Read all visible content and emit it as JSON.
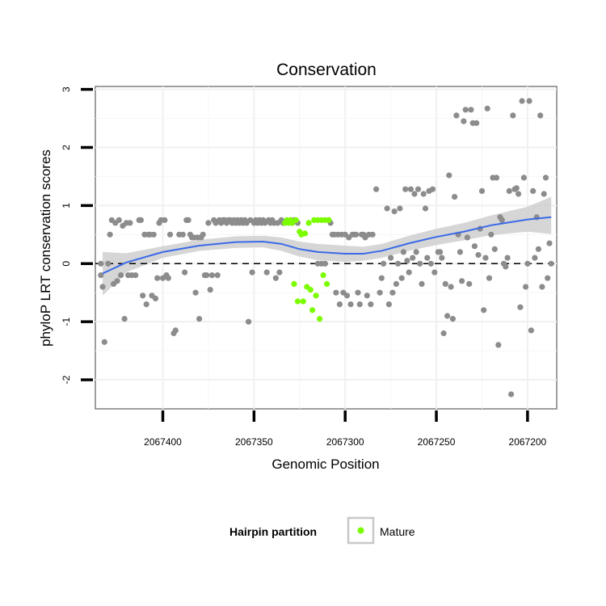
{
  "chart_data": {
    "type": "scatter",
    "title": "Conservation",
    "xlabel": "Genomic Position",
    "ylabel": "phyloP LRT conservation scores",
    "x_reversed": true,
    "xlim": [
      2067437,
      2067184
    ],
    "ylim": [
      -2.5,
      3.05
    ],
    "x_ticks": [
      2067400,
      2067350,
      2067300,
      2067250,
      2067200
    ],
    "y_ticks": [
      -2,
      -1,
      0,
      1,
      2,
      3
    ],
    "grid": true,
    "reference_line": {
      "y": 0,
      "style": "dashed"
    },
    "legend": {
      "title": "Hairpin partition",
      "entries": [
        {
          "label": "Mature",
          "color": "#7cfc00"
        }
      ],
      "placement": "bottom"
    },
    "colors": {
      "background_points": "#8c8c8c",
      "mature_points": "#7cfc00",
      "smooth_line": "#3a6ae8",
      "confidence_band": "#cfcfcf"
    },
    "series": [
      {
        "color": "#8c8c8c",
        "points": [
          [
            2067434,
            0.0
          ],
          [
            2067434,
            -0.2
          ],
          [
            2067433,
            -0.4
          ],
          [
            2067432,
            -1.35
          ],
          [
            2067430,
            0.0
          ],
          [
            2067429,
            0.5
          ],
          [
            2067428,
            0.75
          ],
          [
            2067427,
            -0.35
          ],
          [
            2067426,
            0.7
          ],
          [
            2067425,
            -0.3
          ],
          [
            2067424,
            0.75
          ],
          [
            2067423,
            -0.2
          ],
          [
            2067422,
            0.65
          ],
          [
            2067421,
            -0.95
          ],
          [
            2067420,
            0.7
          ],
          [
            2067419,
            -0.2
          ],
          [
            2067418,
            0.7
          ],
          [
            2067417,
            -0.2
          ],
          [
            2067415,
            -0.2
          ],
          [
            2067413,
            0.75
          ],
          [
            2067412,
            0.75
          ],
          [
            2067411,
            -0.55
          ],
          [
            2067410,
            0.5
          ],
          [
            2067409,
            -0.7
          ],
          [
            2067408,
            0.5
          ],
          [
            2067407,
            0.5
          ],
          [
            2067406,
            -0.55
          ],
          [
            2067405,
            0.5
          ],
          [
            2067404,
            -0.6
          ],
          [
            2067403,
            -0.25
          ],
          [
            2067402,
            0.7
          ],
          [
            2067401,
            0.75
          ],
          [
            2067400,
            -0.25
          ],
          [
            2067399,
            0.75
          ],
          [
            2067398,
            -0.2
          ],
          [
            2067397,
            -0.25
          ],
          [
            2067396,
            0.5
          ],
          [
            2067394,
            -1.2
          ],
          [
            2067393,
            -1.15
          ],
          [
            2067391,
            0.5
          ],
          [
            2067389,
            0.5
          ],
          [
            2067388,
            -0.15
          ],
          [
            2067387,
            0.75
          ],
          [
            2067386,
            0.75
          ],
          [
            2067385,
            0.5
          ],
          [
            2067384,
            0.45
          ],
          [
            2067383,
            0.45
          ],
          [
            2067382,
            -0.5
          ],
          [
            2067381,
            0.45
          ],
          [
            2067380,
            -0.95
          ],
          [
            2067379,
            0.45
          ],
          [
            2067378,
            0.5
          ],
          [
            2067377,
            -0.2
          ],
          [
            2067376,
            -0.2
          ],
          [
            2067375,
            0.7
          ],
          [
            2067374,
            -0.45
          ],
          [
            2067373,
            -0.2
          ],
          [
            2067372,
            0.75
          ],
          [
            2067371,
            0.7
          ],
          [
            2067370,
            -0.2
          ],
          [
            2067369,
            0.75
          ],
          [
            2067368,
            0.7
          ],
          [
            2067367,
            0.75
          ],
          [
            2067366,
            0.75
          ],
          [
            2067365,
            0.7
          ],
          [
            2067364,
            0.75
          ],
          [
            2067363,
            0.75
          ],
          [
            2067362,
            0.7
          ],
          [
            2067361,
            0.75
          ],
          [
            2067360,
            0.7
          ],
          [
            2067359,
            0.75
          ],
          [
            2067358,
            0.7
          ],
          [
            2067357,
            0.75
          ],
          [
            2067356,
            0.7
          ],
          [
            2067355,
            0.75
          ],
          [
            2067354,
            0.7
          ],
          [
            2067353,
            -1.0
          ],
          [
            2067352,
            0.75
          ],
          [
            2067351,
            -0.15
          ],
          [
            2067350,
            0.7
          ],
          [
            2067349,
            0.75
          ],
          [
            2067348,
            0.7
          ],
          [
            2067347,
            0.75
          ],
          [
            2067346,
            0.7
          ],
          [
            2067345,
            0.75
          ],
          [
            2067344,
            0.7
          ],
          [
            2067343,
            -0.15
          ],
          [
            2067342,
            0.75
          ],
          [
            2067341,
            0.7
          ],
          [
            2067340,
            0.75
          ],
          [
            2067339,
            0.7
          ],
          [
            2067338,
            -0.25
          ],
          [
            2067337,
            0.7
          ],
          [
            2067336,
            -0.15
          ],
          [
            2067335,
            0.75
          ],
          [
            2067334,
            0.7
          ],
          [
            2067329,
            0.7
          ],
          [
            2067328,
            0.75
          ],
          [
            2067326,
            0.7
          ],
          [
            2067315,
            0.0
          ],
          [
            2067313,
            0.0
          ],
          [
            2067311,
            0.0
          ],
          [
            2067309,
            0.75
          ],
          [
            2067308,
            0.7
          ],
          [
            2067307,
            0.5
          ],
          [
            2067306,
            0.5
          ],
          [
            2067305,
            -0.5
          ],
          [
            2067304,
            0.5
          ],
          [
            2067303,
            -0.7
          ],
          [
            2067302,
            0.5
          ],
          [
            2067301,
            -0.5
          ],
          [
            2067300,
            0.5
          ],
          [
            2067299,
            -0.55
          ],
          [
            2067298,
            0.45
          ],
          [
            2067297,
            -0.7
          ],
          [
            2067296,
            0.5
          ],
          [
            2067295,
            0.5
          ],
          [
            2067294,
            0.5
          ],
          [
            2067293,
            -0.5
          ],
          [
            2067292,
            -0.7
          ],
          [
            2067291,
            0.5
          ],
          [
            2067290,
            0.5
          ],
          [
            2067289,
            0.45
          ],
          [
            2067288,
            -0.55
          ],
          [
            2067287,
            0.5
          ],
          [
            2067286,
            -0.7
          ],
          [
            2067285,
            0.5
          ],
          [
            2067283,
            1.28
          ],
          [
            2067281,
            -0.5
          ],
          [
            2067280,
            -0.25
          ],
          [
            2067279,
            0.0
          ],
          [
            2067277,
            0.95
          ],
          [
            2067276,
            -0.7
          ],
          [
            2067275,
            0.1
          ],
          [
            2067274,
            -0.5
          ],
          [
            2067273,
            0.9
          ],
          [
            2067272,
            -0.35
          ],
          [
            2067271,
            0.0
          ],
          [
            2067270,
            0.95
          ],
          [
            2067269,
            -0.25
          ],
          [
            2067268,
            0.2
          ],
          [
            2067267,
            1.28
          ],
          [
            2067266,
            0.05
          ],
          [
            2067265,
            -0.15
          ],
          [
            2067264,
            1.28
          ],
          [
            2067263,
            0.1
          ],
          [
            2067262,
            1.2
          ],
          [
            2067261,
            0.2
          ],
          [
            2067260,
            1.28
          ],
          [
            2067259,
            0.0
          ],
          [
            2067258,
            -0.35
          ],
          [
            2067257,
            1.2
          ],
          [
            2067256,
            0.95
          ],
          [
            2067255,
            0.1
          ],
          [
            2067254,
            1.25
          ],
          [
            2067253,
            0.0
          ],
          [
            2067252,
            1.28
          ],
          [
            2067251,
            -0.15
          ],
          [
            2067249,
            0.2
          ],
          [
            2067248,
            0.2
          ],
          [
            2067247,
            0.1
          ],
          [
            2067246,
            -1.2
          ],
          [
            2067245,
            -0.35
          ],
          [
            2067244,
            -0.9
          ],
          [
            2067243,
            1.52
          ],
          [
            2067242,
            -0.4
          ],
          [
            2067241,
            -0.95
          ],
          [
            2067240,
            1.15
          ],
          [
            2067239,
            2.55
          ],
          [
            2067238,
            0.5
          ],
          [
            2067237,
            0.2
          ],
          [
            2067236,
            -0.3
          ],
          [
            2067235,
            2.45
          ],
          [
            2067234,
            2.65
          ],
          [
            2067233,
            0.45
          ],
          [
            2067232,
            -0.35
          ],
          [
            2067231,
            2.65
          ],
          [
            2067230,
            2.42
          ],
          [
            2067229,
            0.3
          ],
          [
            2067228,
            2.42
          ],
          [
            2067227,
            0.15
          ],
          [
            2067226,
            0.6
          ],
          [
            2067225,
            1.25
          ],
          [
            2067224,
            -0.8
          ],
          [
            2067223,
            0.1
          ],
          [
            2067222,
            2.67
          ],
          [
            2067221,
            -0.25
          ],
          [
            2067220,
            0.5
          ],
          [
            2067219,
            1.48
          ],
          [
            2067218,
            0.25
          ],
          [
            2067217,
            1.48
          ],
          [
            2067216,
            -1.4
          ],
          [
            2067215,
            0.8
          ],
          [
            2067214,
            0.75
          ],
          [
            2067213,
            0.0
          ],
          [
            2067212,
            -0.05
          ],
          [
            2067211,
            0.1
          ],
          [
            2067210,
            1.25
          ],
          [
            2067209,
            -2.25
          ],
          [
            2067208,
            2.55
          ],
          [
            2067207,
            1.28
          ],
          [
            2067206,
            1.3
          ],
          [
            2067205,
            1.2
          ],
          [
            2067204,
            -0.75
          ],
          [
            2067203,
            2.8
          ],
          [
            2067202,
            1.48
          ],
          [
            2067201,
            -0.4
          ],
          [
            2067200,
            0.0
          ],
          [
            2067199,
            2.8
          ],
          [
            2067198,
            -1.15
          ],
          [
            2067197,
            1.25
          ],
          [
            2067196,
            0.1
          ],
          [
            2067195,
            0.8
          ],
          [
            2067194,
            0.25
          ],
          [
            2067193,
            2.55
          ],
          [
            2067192,
            -0.4
          ],
          [
            2067191,
            1.2
          ],
          [
            2067190,
            1.48
          ],
          [
            2067189,
            -0.25
          ],
          [
            2067188,
            0.35
          ],
          [
            2067187,
            0.0
          ]
        ]
      },
      {
        "name": "Mature",
        "color": "#7cfc00",
        "points": [
          [
            2067333,
            0.7
          ],
          [
            2067332,
            0.75
          ],
          [
            2067331,
            0.7
          ],
          [
            2067330,
            0.75
          ],
          [
            2067329,
            0.7
          ],
          [
            2067328,
            -0.35
          ],
          [
            2067327,
            0.75
          ],
          [
            2067326,
            -0.65
          ],
          [
            2067325,
            0.55
          ],
          [
            2067324,
            0.5
          ],
          [
            2067323,
            -0.65
          ],
          [
            2067322,
            0.52
          ],
          [
            2067321,
            -0.4
          ],
          [
            2067320,
            0.7
          ],
          [
            2067319,
            -0.45
          ],
          [
            2067318,
            -0.8
          ],
          [
            2067317,
            0.75
          ],
          [
            2067316,
            -0.55
          ],
          [
            2067315,
            0.75
          ],
          [
            2067314,
            -0.95
          ],
          [
            2067313,
            0.75
          ],
          [
            2067312,
            -0.2
          ],
          [
            2067311,
            0.75
          ],
          [
            2067310,
            -0.35
          ],
          [
            2067309,
            0.75
          ]
        ]
      }
    ],
    "smooth": {
      "x": [
        2067433,
        2067420,
        2067400,
        2067380,
        2067360,
        2067345,
        2067335,
        2067325,
        2067315,
        2067300,
        2067290,
        2067280,
        2067265,
        2067250,
        2067235,
        2067220,
        2067200,
        2067187
      ],
      "y": [
        -0.17,
        0.02,
        0.2,
        0.31,
        0.37,
        0.38,
        0.34,
        0.25,
        0.2,
        0.17,
        0.17,
        0.22,
        0.35,
        0.46,
        0.55,
        0.66,
        0.76,
        0.8
      ],
      "lower": [
        -0.55,
        -0.15,
        0.1,
        0.22,
        0.27,
        0.28,
        0.22,
        0.12,
        0.06,
        0.03,
        0.05,
        0.1,
        0.22,
        0.32,
        0.4,
        0.49,
        0.55,
        0.51
      ],
      "upper": [
        0.2,
        0.18,
        0.3,
        0.41,
        0.47,
        0.48,
        0.45,
        0.38,
        0.34,
        0.31,
        0.29,
        0.34,
        0.48,
        0.6,
        0.7,
        0.83,
        0.98,
        1.15
      ]
    }
  }
}
